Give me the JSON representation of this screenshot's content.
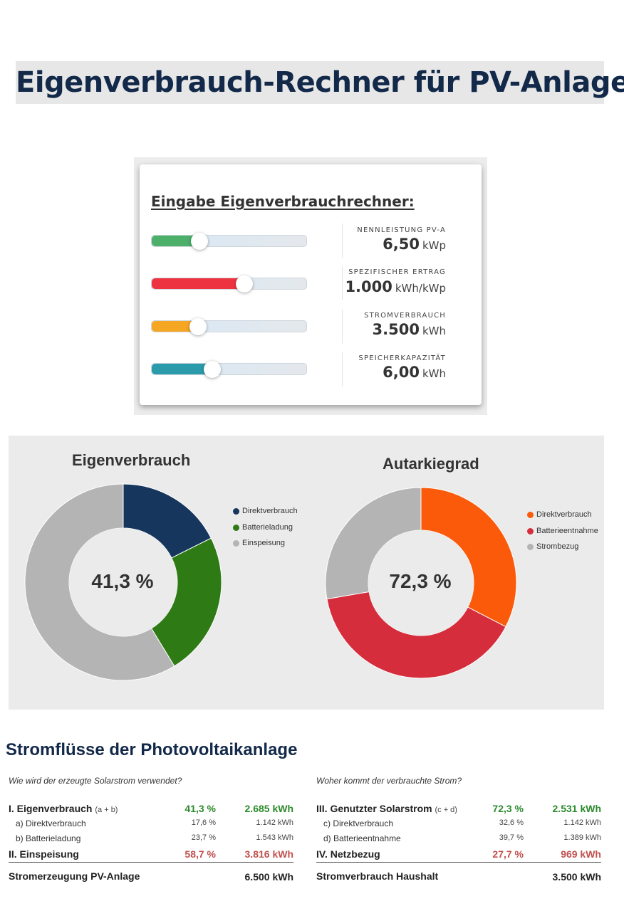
{
  "page_title": "Eigenverbrauch-Rechner für PV-Anlagen",
  "input_card": {
    "title": "Eingabe Eigenverbrauchrechner:",
    "sliders": [
      {
        "label": "NENNLEISTUNG PV-A",
        "value": "6,50",
        "unit": "kWp",
        "fill_fraction": 0.31,
        "color": "#4caf6a"
      },
      {
        "label": "SPEZIFISCHER ERTRAG",
        "value": "1.000",
        "unit": "kWh/kWp",
        "fill_fraction": 0.6,
        "color": "#ee3340"
      },
      {
        "label": "STROMVERBRAUCH",
        "value": "3.500",
        "unit": "kWh",
        "fill_fraction": 0.3,
        "color": "#f5a623"
      },
      {
        "label": "SPEICHERKAPAZITÄT",
        "value": "6,00",
        "unit": "kWh",
        "fill_fraction": 0.39,
        "color": "#2b9aaa"
      }
    ]
  },
  "chart_data": [
    {
      "type": "pie",
      "title": "Eigenverbrauch",
      "center_label": "41,3 %",
      "categories": [
        "Direktverbrauch",
        "Batterieladung",
        "Einspeisung"
      ],
      "values": [
        17.6,
        23.7,
        58.7
      ],
      "colors": [
        "#16365d",
        "#2e7a14",
        "#b4b4b4"
      ],
      "legend": "right"
    },
    {
      "type": "pie",
      "title": "Autarkiegrad",
      "center_label": "72,3 %",
      "categories": [
        "Direktverbrauch",
        "Batterieentnahme",
        "Strombezug"
      ],
      "values": [
        32.6,
        39.7,
        27.7
      ],
      "colors": [
        "#fa5a0a",
        "#d62d3c",
        "#b4b4b4"
      ],
      "legend": "right"
    }
  ],
  "flows": {
    "title": "Stromflüsse der Photovoltaikanlage",
    "left": {
      "question": "Wie wird der erzeugte Solarstrom verwendet?",
      "main1": {
        "label": "I. Eigenverbrauch",
        "abbr": "(a + b)",
        "pct": "41,3 %",
        "kwh": "2.685 kWh"
      },
      "sub1": {
        "label": "a) Direktverbrauch",
        "pct": "17,6 %",
        "kwh": "1.142 kWh"
      },
      "sub2": {
        "label": "b) Batterieladung",
        "pct": "23,7 %",
        "kwh": "1.543 kWh"
      },
      "main2": {
        "label": "II. Einspeisung",
        "pct": "58,7 %",
        "kwh": "3.816 kWh"
      },
      "total": {
        "label": "Stromerzeugung PV-Anlage",
        "value": "6.500 kWh"
      }
    },
    "right": {
      "question": "Woher kommt der verbrauchte Strom?",
      "main1": {
        "label": "III. Genutzter Solarstrom",
        "abbr": "(c + d)",
        "pct": "72,3 %",
        "kwh": "2.531 kWh"
      },
      "sub1": {
        "label": "c) Direktverbrauch",
        "pct": "32,6 %",
        "kwh": "1.142 kWh"
      },
      "sub2": {
        "label": "d) Batterieentnahme",
        "pct": "39,7 %",
        "kwh": "1.389 kWh"
      },
      "main2": {
        "label": "IV. Netzbezug",
        "pct": "27,7 %",
        "kwh": "969 kWh"
      },
      "total": {
        "label": "Stromverbrauch Haushalt",
        "value": "3.500 kWh"
      }
    }
  }
}
